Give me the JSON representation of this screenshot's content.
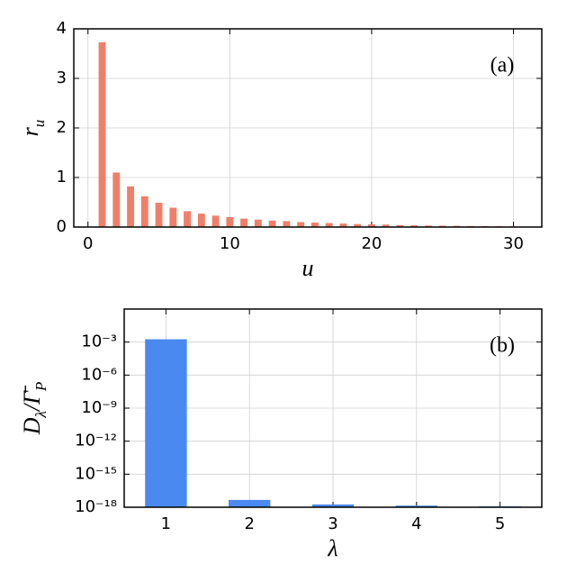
{
  "chart_data": [
    {
      "type": "bar",
      "annotation": "(a)",
      "xlabel": [
        "u"
      ],
      "ylabel": [
        "r",
        "u"
      ],
      "color": "#f07f69",
      "grid": true,
      "x": [
        1,
        2,
        3,
        4,
        5,
        6,
        7,
        8,
        9,
        10,
        11,
        12,
        13,
        14,
        15,
        16,
        17,
        18,
        19,
        20,
        21,
        22,
        23,
        24,
        25,
        26,
        27,
        28,
        29,
        30
      ],
      "values": [
        3.73,
        1.1,
        0.82,
        0.62,
        0.49,
        0.39,
        0.32,
        0.27,
        0.23,
        0.2,
        0.17,
        0.15,
        0.13,
        0.12,
        0.1,
        0.09,
        0.08,
        0.07,
        0.06,
        0.055,
        0.05,
        0.04,
        0.035,
        0.03,
        0.027,
        0.024,
        0.02,
        0.018,
        0.016,
        0.014
      ],
      "xlim": [
        -1,
        32
      ],
      "xticks": [
        0,
        10,
        20,
        30
      ],
      "ylim": [
        0,
        4
      ],
      "yticks": [
        0,
        1,
        2,
        3,
        4
      ]
    },
    {
      "type": "bar",
      "annotation": "(b)",
      "xlabel": [
        "λ"
      ],
      "ylabel": [
        "D",
        "λ",
        "/Γ̄",
        "P"
      ],
      "color": "#4a8af0",
      "grid": true,
      "log_y": true,
      "x": [
        1,
        2,
        3,
        4,
        5
      ],
      "values": [
        0.0018,
        4.6e-18,
        1.8e-18,
        1.4e-18,
        1.2e-18
      ],
      "xlim": [
        0.5,
        5.5
      ],
      "xticks": [
        1,
        2,
        3,
        4,
        5
      ],
      "ylim": [
        1e-18,
        1
      ],
      "yticks": [
        {
          "value": 1e-18,
          "label": "10⁻¹⁸"
        },
        {
          "value": 1e-15,
          "label": "10⁻¹⁵"
        },
        {
          "value": 1e-12,
          "label": "10⁻¹²"
        },
        {
          "value": 1e-09,
          "label": "10⁻⁹"
        },
        {
          "value": 1e-06,
          "label": "10⁻⁶"
        },
        {
          "value": 0.001,
          "label": "10⁻³"
        }
      ]
    }
  ]
}
